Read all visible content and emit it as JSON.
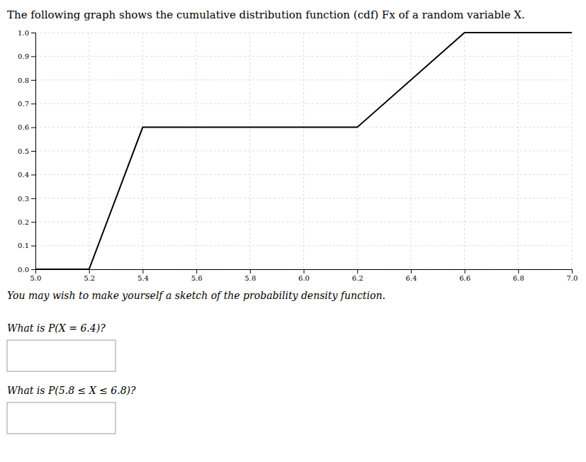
{
  "chart_data": {
    "type": "line",
    "title": "The following graph shows the cumulative distribution function (cdf) Fx of a random variable X.",
    "subtitle": "You may wish to make yourself a sketch of the probability density function.",
    "annotations": [
      "What is P(X = 6.4)?",
      "What is P(5.8 ≤ X ≤ 6.8)?"
    ],
    "x": [
      5.0,
      5.2,
      5.4,
      6.2,
      6.6,
      7.0
    ],
    "values": [
      0.0,
      0.0,
      0.6,
      0.6,
      1.0,
      1.0
    ],
    "color": "#000000",
    "xlim": [
      5.0,
      7.0
    ],
    "ylim": [
      0.0,
      1.0
    ],
    "xticks": [
      {
        "value": 5.0,
        "label": "5.0"
      },
      5.2,
      5.4,
      5.6,
      5.8,
      {
        "value": 6.0,
        "label": "6.0"
      },
      6.2,
      6.4,
      6.6,
      6.8,
      {
        "value": 7.0,
        "label": "7.0"
      }
    ],
    "yticks": [
      {
        "value": 0.0,
        "label": "0.0"
      },
      0.1,
      0.2,
      0.3,
      0.4,
      0.5,
      0.6,
      0.7,
      0.8,
      0.9,
      {
        "value": 1.0,
        "label": "1.0"
      }
    ],
    "grid": true
  }
}
